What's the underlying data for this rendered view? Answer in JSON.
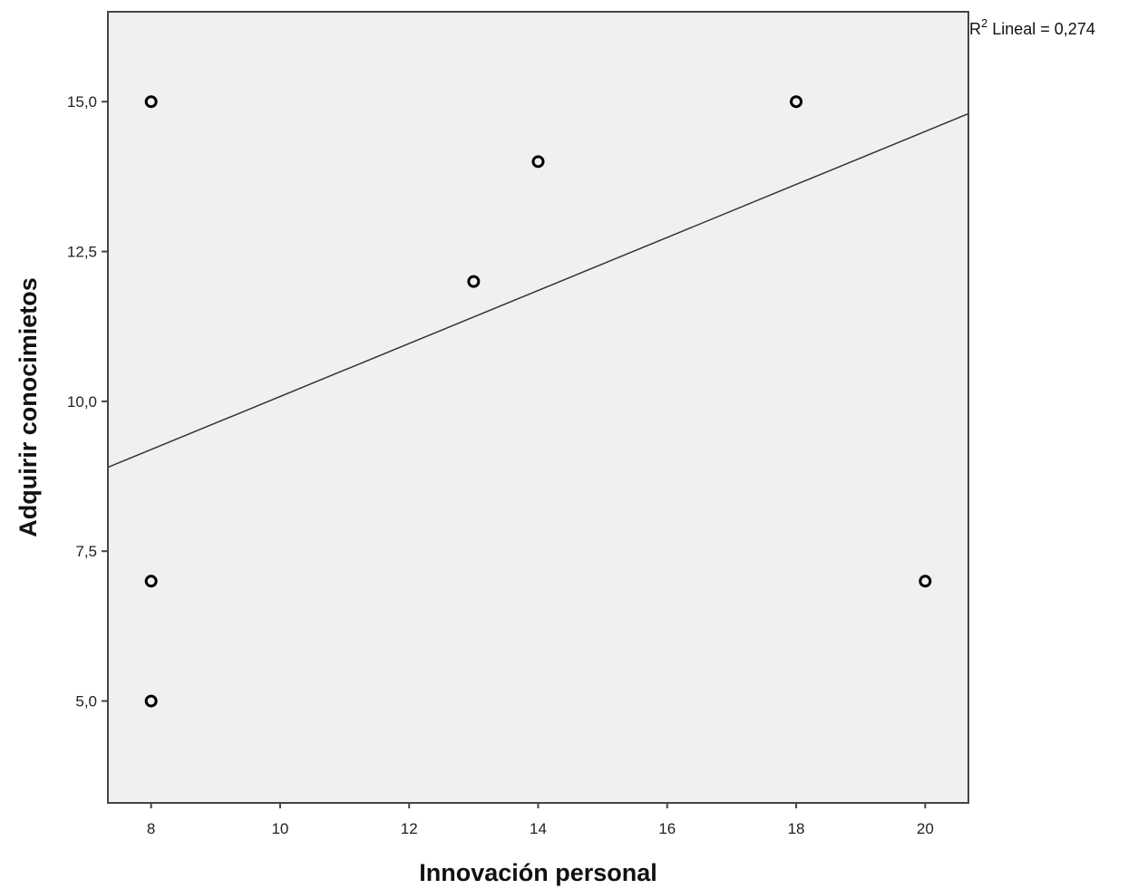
{
  "chart_data": {
    "type": "scatter",
    "xlabel": "Innovación personal",
    "ylabel": "Adquirir conocimietos",
    "xlim": [
      7.33,
      20.67
    ],
    "ylim": [
      3.3,
      16.5
    ],
    "x_ticks": [
      8,
      10,
      12,
      14,
      16,
      18,
      20
    ],
    "x_tick_labels": [
      "8",
      "10",
      "12",
      "14",
      "16",
      "18",
      "20"
    ],
    "y_ticks": [
      5.0,
      7.5,
      10.0,
      12.5,
      15.0
    ],
    "y_tick_labels": [
      "5,0",
      "7,5",
      "10,0",
      "12,5",
      "15,0"
    ],
    "points": [
      {
        "x": 8,
        "y": 15
      },
      {
        "x": 8,
        "y": 7
      },
      {
        "x": 8,
        "y": 5
      },
      {
        "x": 13,
        "y": 12
      },
      {
        "x": 14,
        "y": 14
      },
      {
        "x": 18,
        "y": 15
      },
      {
        "x": 20,
        "y": 7
      }
    ],
    "fit_line": {
      "type": "linear",
      "x": [
        7.33,
        20.67
      ],
      "y": [
        8.9,
        14.8
      ]
    },
    "annotation": {
      "prefix": "R",
      "superscript": "2",
      "text": " Lineal = 0,274"
    },
    "grid": false,
    "legend": "none",
    "colors": {
      "plot_background": "#f0f0f0",
      "marker_stroke": "#000000",
      "line": "#333333",
      "frame": "#444444"
    }
  }
}
